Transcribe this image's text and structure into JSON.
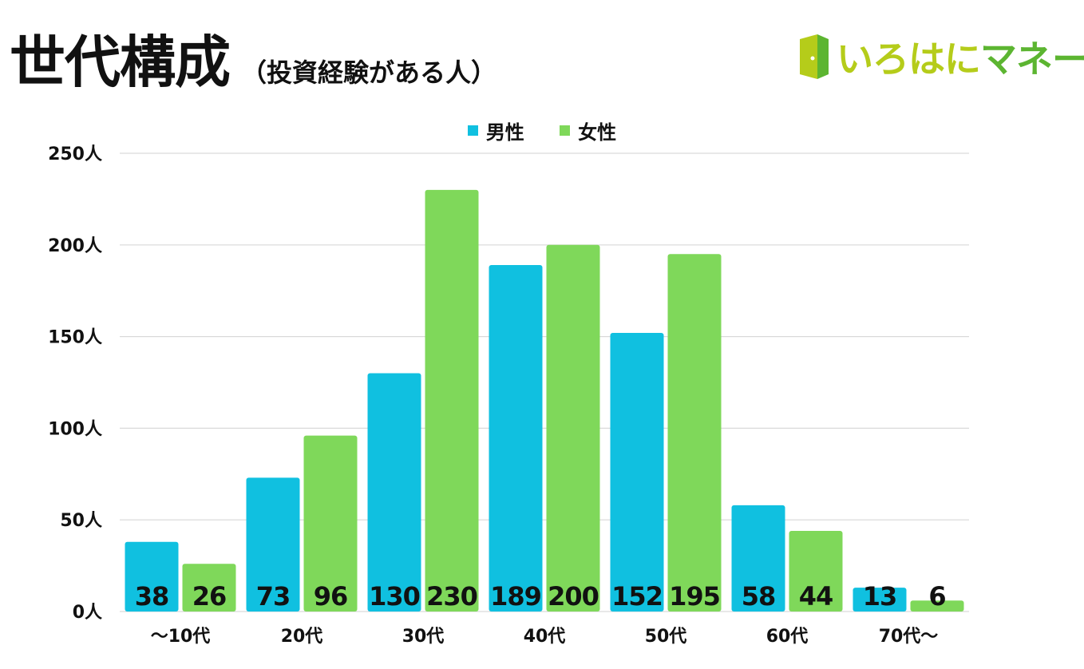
{
  "header": {
    "title": "世代構成",
    "subtitle": "（投資経験がある人）",
    "brand": "いろはにマネー"
  },
  "colors": {
    "male": "#10c0e0",
    "female": "#7fd85a",
    "grid": "#d9d9d9"
  },
  "chart_data": {
    "type": "bar",
    "categories": [
      "〜10代",
      "20代",
      "30代",
      "40代",
      "50代",
      "60代",
      "70代〜"
    ],
    "series": [
      {
        "name": "男性",
        "values": [
          38,
          73,
          130,
          189,
          152,
          58,
          13
        ]
      },
      {
        "name": "女性",
        "values": [
          26,
          96,
          230,
          200,
          195,
          44,
          6
        ]
      }
    ],
    "ylim": [
      0,
      250
    ],
    "yticks": [
      0,
      50,
      100,
      150,
      200,
      250
    ],
    "ytick_suffix": "人",
    "grid": true,
    "legend_position": "top-center"
  }
}
